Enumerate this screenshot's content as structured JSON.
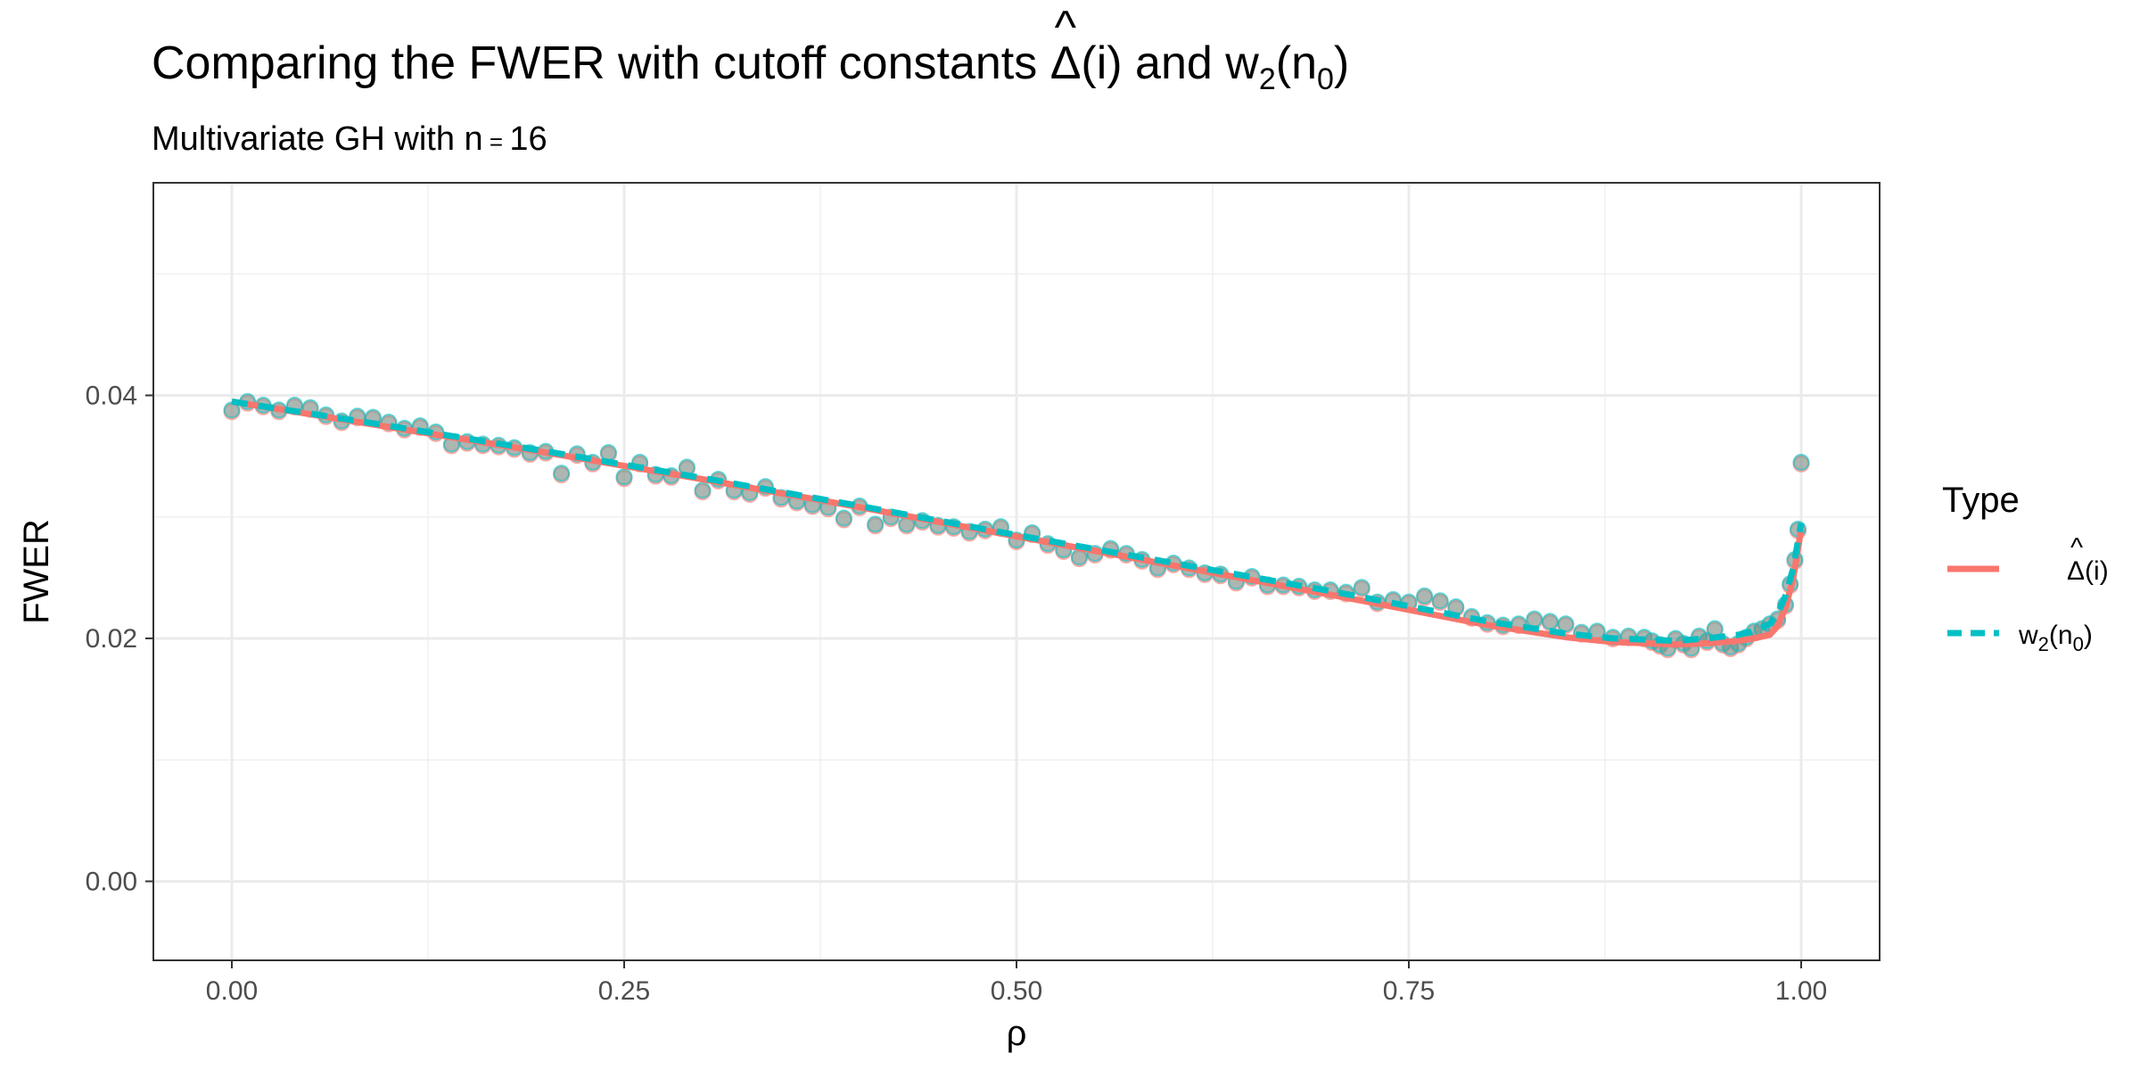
{
  "chart_data": {
    "type": "line",
    "title_prefix": "Comparing the FWER with cutoff constants ",
    "title_delta": "Δ",
    "title_hat": "^",
    "title_mid": "(i) and w",
    "title_sub2": "2",
    "title_paren_open": "(n",
    "title_sub0": "0",
    "title_paren_close": ")",
    "subtitle_prefix": "Multivariate GH with n",
    "subtitle_eq": " = ",
    "subtitle_value": "16",
    "xlabel": "ρ",
    "ylabel": "FWER",
    "xlim": [
      -0.05,
      1.05
    ],
    "ylim": [
      -0.0065,
      0.0575
    ],
    "x_ticks": [
      0.0,
      0.25,
      0.5,
      0.75,
      1.0
    ],
    "x_tick_labels": [
      "0.00",
      "0.25",
      "0.50",
      "0.75",
      "1.00"
    ],
    "y_ticks": [
      0.0,
      0.02,
      0.04
    ],
    "y_tick_labels": [
      "0.00",
      "0.02",
      "0.04"
    ],
    "grid": true,
    "legend": {
      "title": "Type",
      "placement": "right",
      "entries": [
        {
          "label_main": "Δ",
          "label_hat": "^",
          "label_rest": "(i)",
          "color": "#F8766D",
          "dash": "solid"
        },
        {
          "label_main": "w",
          "label_sub": "2",
          "label_rest": "(n",
          "label_sub2": "0",
          "label_close": ")",
          "color": "#00BFC4",
          "dash": "dashed"
        }
      ]
    },
    "series": [
      {
        "name": "Δ(i)",
        "color": "#F8766D",
        "x": [
          0.0,
          0.1,
          0.2,
          0.3,
          0.4,
          0.5,
          0.6,
          0.7,
          0.8,
          0.85,
          0.88,
          0.9,
          0.92,
          0.94,
          0.96,
          0.97,
          0.98,
          0.985,
          0.99,
          0.995,
          1.0
        ],
        "y": [
          0.0395,
          0.0374,
          0.0353,
          0.0331,
          0.0308,
          0.0284,
          0.026,
          0.0236,
          0.0211,
          0.0201,
          0.0197,
          0.0196,
          0.0195,
          0.0196,
          0.0198,
          0.02,
          0.0203,
          0.021,
          0.0225,
          0.025,
          0.029
        ]
      },
      {
        "name": "w2(n0)",
        "color": "#00BFC4",
        "x": [
          0.0,
          0.1,
          0.2,
          0.3,
          0.4,
          0.5,
          0.6,
          0.7,
          0.8,
          0.85,
          0.88,
          0.9,
          0.92,
          0.94,
          0.96,
          0.97,
          0.98,
          0.985,
          0.99,
          0.995,
          1.0
        ],
        "y": [
          0.0395,
          0.0375,
          0.0354,
          0.0332,
          0.0309,
          0.0285,
          0.0262,
          0.0239,
          0.0214,
          0.0204,
          0.02,
          0.0199,
          0.0198,
          0.02,
          0.0203,
          0.0206,
          0.0212,
          0.022,
          0.0235,
          0.0258,
          0.0295
        ]
      }
    ],
    "points": {
      "color": "#5E9E96",
      "x": [
        0.0,
        0.01,
        0.02,
        0.03,
        0.04,
        0.05,
        0.06,
        0.07,
        0.08,
        0.09,
        0.1,
        0.11,
        0.12,
        0.13,
        0.14,
        0.15,
        0.16,
        0.17,
        0.18,
        0.19,
        0.2,
        0.21,
        0.22,
        0.23,
        0.24,
        0.25,
        0.26,
        0.27,
        0.28,
        0.29,
        0.3,
        0.31,
        0.32,
        0.33,
        0.34,
        0.35,
        0.36,
        0.37,
        0.38,
        0.39,
        0.4,
        0.41,
        0.42,
        0.43,
        0.44,
        0.45,
        0.46,
        0.47,
        0.48,
        0.49,
        0.5,
        0.51,
        0.52,
        0.53,
        0.54,
        0.55,
        0.56,
        0.57,
        0.58,
        0.59,
        0.6,
        0.61,
        0.62,
        0.63,
        0.64,
        0.65,
        0.66,
        0.67,
        0.68,
        0.69,
        0.7,
        0.71,
        0.72,
        0.73,
        0.74,
        0.75,
        0.76,
        0.77,
        0.78,
        0.79,
        0.8,
        0.81,
        0.82,
        0.83,
        0.84,
        0.85,
        0.86,
        0.87,
        0.88,
        0.89,
        0.9,
        0.905,
        0.91,
        0.915,
        0.92,
        0.925,
        0.93,
        0.935,
        0.94,
        0.945,
        0.95,
        0.955,
        0.96,
        0.965,
        0.97,
        0.975,
        0.98,
        0.985,
        0.99,
        0.993,
        0.996,
        0.998,
        1.0
      ],
      "y": [
        0.0388,
        0.0395,
        0.0392,
        0.0388,
        0.0392,
        0.039,
        0.0384,
        0.0379,
        0.0383,
        0.0382,
        0.0378,
        0.0373,
        0.0375,
        0.037,
        0.036,
        0.0362,
        0.036,
        0.0359,
        0.0357,
        0.0353,
        0.0354,
        0.0336,
        0.0352,
        0.0345,
        0.0353,
        0.0333,
        0.0345,
        0.0335,
        0.0334,
        0.0341,
        0.0322,
        0.0331,
        0.0322,
        0.032,
        0.0325,
        0.0316,
        0.0313,
        0.031,
        0.0308,
        0.0299,
        0.0309,
        0.0294,
        0.03,
        0.0294,
        0.0297,
        0.0293,
        0.0292,
        0.0288,
        0.029,
        0.0292,
        0.0281,
        0.0287,
        0.0278,
        0.0273,
        0.0267,
        0.027,
        0.0274,
        0.027,
        0.0265,
        0.0258,
        0.0262,
        0.0258,
        0.0254,
        0.0253,
        0.0247,
        0.0251,
        0.0244,
        0.0244,
        0.0243,
        0.024,
        0.024,
        0.0238,
        0.0242,
        0.023,
        0.0232,
        0.023,
        0.0235,
        0.0231,
        0.0226,
        0.0218,
        0.0213,
        0.0211,
        0.0212,
        0.0216,
        0.0214,
        0.0212,
        0.0205,
        0.0206,
        0.0201,
        0.0202,
        0.0201,
        0.0198,
        0.0195,
        0.0192,
        0.02,
        0.0196,
        0.0192,
        0.0202,
        0.0198,
        0.0208,
        0.0196,
        0.0193,
        0.0196,
        0.0201,
        0.0206,
        0.0208,
        0.0212,
        0.0216,
        0.0228,
        0.0245,
        0.0265,
        0.029,
        0.0345
      ]
    }
  }
}
